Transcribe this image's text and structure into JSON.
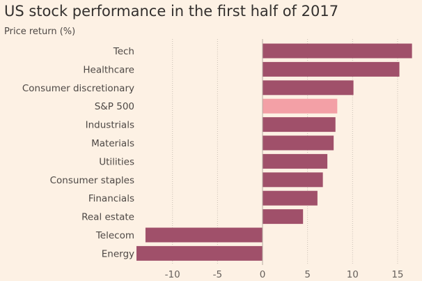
{
  "chart_data": {
    "type": "bar",
    "orientation": "horizontal",
    "title": "US stock performance in the first half of 2017",
    "subtitle": "Price return (%)",
    "categories": [
      "Tech",
      "Healthcare",
      "Consumer discretionary",
      "S&P 500",
      "Industrials",
      "Materials",
      "Utilities",
      "Consumer staples",
      "Financials",
      "Real estate",
      "Telecom",
      "Energy"
    ],
    "values": [
      16.6,
      15.2,
      10.1,
      8.3,
      8.1,
      7.9,
      7.2,
      6.7,
      6.1,
      4.5,
      -13.0,
      -14.0
    ],
    "highlight": "S&P 500",
    "xlim": [
      -14.0,
      16.8
    ],
    "xticks": [
      -10,
      -5,
      0,
      5,
      10,
      15
    ],
    "grid": true,
    "colors": {
      "bar": "#a0506a",
      "highlight": "#f3a0a6",
      "background": "#fdf1e4",
      "grid": "#c9bfb4",
      "zero_line": "#b8aca2"
    }
  }
}
